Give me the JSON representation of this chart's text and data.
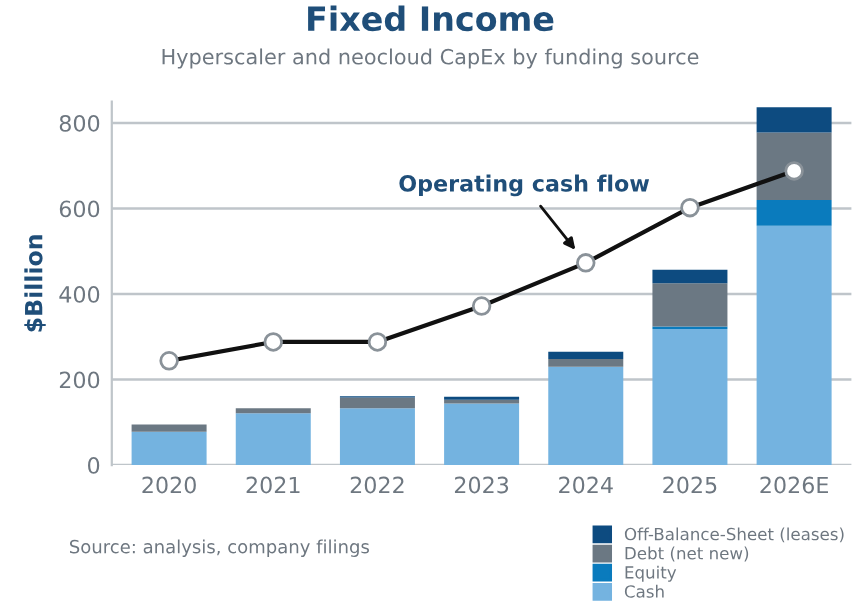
{
  "chart_data": {
    "type": "bar",
    "title": "Fixed Income",
    "subtitle": "Hyperscaler and neocloud CapEx by funding source",
    "ylabel": "$Billion",
    "categories": [
      "2020",
      "2021",
      "2022",
      "2023",
      "2024",
      "2025",
      "2026E"
    ],
    "stacked": true,
    "series": [
      {
        "name": "Cash",
        "color": "#74b3e0",
        "values": [
          78,
          121,
          133,
          144,
          230,
          318,
          560
        ]
      },
      {
        "name": "Equity",
        "color": "#0a7bbd",
        "values": [
          null,
          null,
          null,
          null,
          null,
          6,
          60
        ]
      },
      {
        "name": "Debt (net new)",
        "color": "#6b7883",
        "values": [
          17,
          12,
          25,
          9,
          18,
          101,
          158
        ]
      },
      {
        "name": "Off-Balance-Sheet (leases)",
        "color": "#0d4b80",
        "values": [
          null,
          null,
          3,
          7,
          17,
          32,
          59
        ]
      },
      {
        "name": "Operating cash flow",
        "type": "line",
        "color": "#111111",
        "marker": "circle",
        "values": [
          244,
          288,
          288,
          372,
          473,
          602,
          688
        ]
      }
    ],
    "ylim": [
      0,
      850
    ],
    "yticks": [
      0,
      200,
      400,
      600,
      800
    ],
    "grid": "y",
    "legend": "bottom right",
    "annotations": [
      "Source: analysis, company filings"
    ]
  }
}
